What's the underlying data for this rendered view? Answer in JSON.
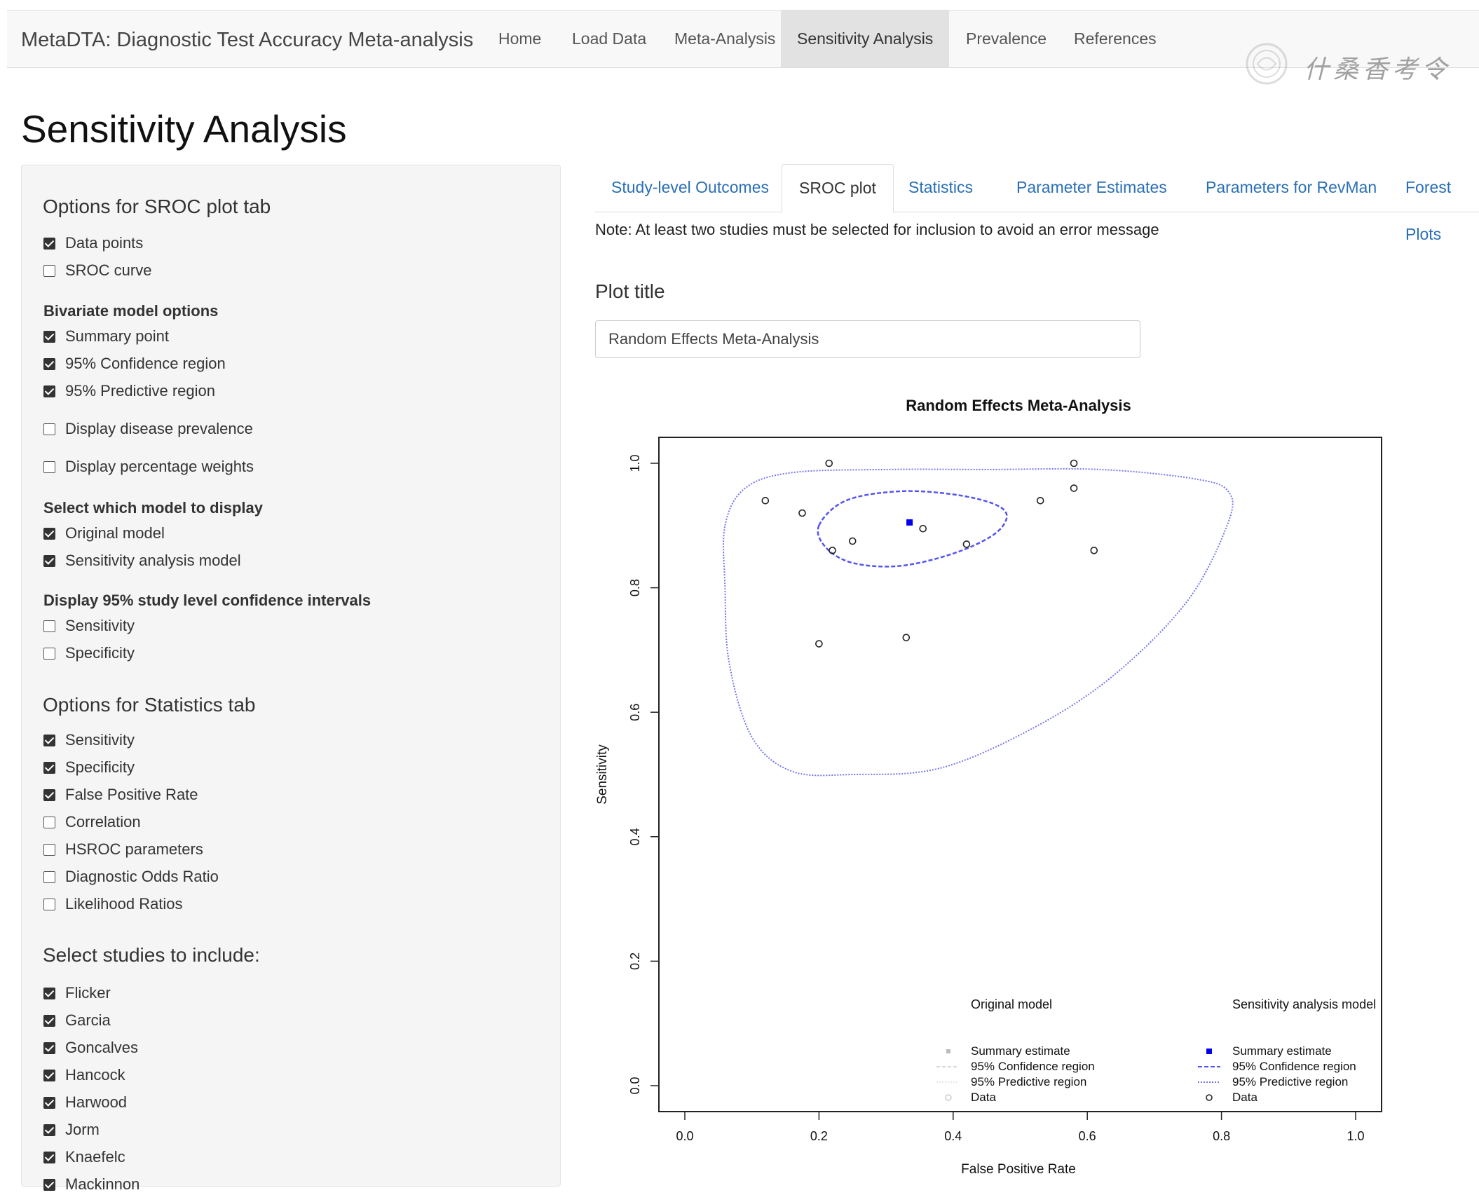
{
  "navbar": {
    "brand": "MetaDTA: Diagnostic Test Accuracy Meta-analysis",
    "items": [
      {
        "label": "Home",
        "active": false
      },
      {
        "label": "Load Data",
        "active": false
      },
      {
        "label": "Meta-Analysis",
        "active": false
      },
      {
        "label": "Sensitivity Analysis",
        "active": true
      },
      {
        "label": "Prevalence",
        "active": false
      },
      {
        "label": "References",
        "active": false
      }
    ]
  },
  "watermark_text": "什桑香考令",
  "page_title": "Sensitivity Analysis",
  "sidebar": {
    "sroc_heading": "Options for SROC plot tab",
    "sroc_options": [
      {
        "label": "Data points",
        "checked": true
      },
      {
        "label": "SROC curve",
        "checked": false
      }
    ],
    "bivariate_label": "Bivariate model options",
    "bivariate_options": [
      {
        "label": "Summary point",
        "checked": true
      },
      {
        "label": "95% Confidence region",
        "checked": true
      },
      {
        "label": "95% Predictive region",
        "checked": true
      }
    ],
    "display_options": [
      {
        "label": "Display disease prevalence",
        "checked": false
      },
      {
        "label": "Display percentage weights",
        "checked": false
      }
    ],
    "model_label": "Select which model to display",
    "model_options": [
      {
        "label": "Original model",
        "checked": true
      },
      {
        "label": "Sensitivity analysis model",
        "checked": true
      }
    ],
    "ci_label": "Display 95% study level confidence intervals",
    "ci_options": [
      {
        "label": "Sensitivity",
        "checked": false
      },
      {
        "label": "Specificity",
        "checked": false
      }
    ],
    "stats_heading": "Options for Statistics tab",
    "stats_options": [
      {
        "label": "Sensitivity",
        "checked": true
      },
      {
        "label": "Specificity",
        "checked": true
      },
      {
        "label": "False Positive Rate",
        "checked": true
      },
      {
        "label": "Correlation",
        "checked": false
      },
      {
        "label": "HSROC parameters",
        "checked": false
      },
      {
        "label": "Diagnostic Odds Ratio",
        "checked": false
      },
      {
        "label": "Likelihood Ratios",
        "checked": false
      }
    ],
    "studies_heading": "Select studies to include:",
    "studies": [
      {
        "label": "Flicker",
        "checked": true
      },
      {
        "label": "Garcia",
        "checked": true
      },
      {
        "label": "Goncalves",
        "checked": true
      },
      {
        "label": "Hancock",
        "checked": true
      },
      {
        "label": "Harwood",
        "checked": true
      },
      {
        "label": "Jorm",
        "checked": true
      },
      {
        "label": "Knaefelc",
        "checked": true
      },
      {
        "label": "Mackinnon",
        "checked": true
      }
    ]
  },
  "tabs": [
    {
      "label": "Study-level Outcomes",
      "active": false
    },
    {
      "label": "SROC plot",
      "active": true
    },
    {
      "label": "Statistics",
      "active": false
    },
    {
      "label": "Parameter Estimates",
      "active": false
    },
    {
      "label": "Parameters for RevMan",
      "active": false
    },
    {
      "label": "Forest Plots",
      "active": false
    }
  ],
  "note": "Note: At least two studies must be selected for inclusion to avoid an error message",
  "plot_title_label": "Plot title",
  "plot_title_value": "Random Effects Meta-Analysis",
  "colors": {
    "accent_blue": "#2a6fb5",
    "summary_blue": "#0000ee",
    "region_blue": "#6666ee"
  },
  "chart_data": {
    "type": "scatter",
    "title": "Random Effects Meta-Analysis",
    "xlabel": "False Positive Rate",
    "ylabel": "Sensitivity",
    "xlim": [
      0,
      1
    ],
    "ylim": [
      0,
      1
    ],
    "xticks": [
      "0.0",
      "0.2",
      "0.4",
      "0.6",
      "0.8",
      "1.0"
    ],
    "yticks": [
      "0.0",
      "0.2",
      "0.4",
      "0.6",
      "0.8",
      "1.0"
    ],
    "grid": false,
    "data_points": [
      {
        "x": 0.12,
        "y": 0.94
      },
      {
        "x": 0.175,
        "y": 0.92
      },
      {
        "x": 0.215,
        "y": 1.0
      },
      {
        "x": 0.22,
        "y": 0.86
      },
      {
        "x": 0.25,
        "y": 0.875
      },
      {
        "x": 0.2,
        "y": 0.71
      },
      {
        "x": 0.33,
        "y": 0.72
      },
      {
        "x": 0.355,
        "y": 0.895
      },
      {
        "x": 0.42,
        "y": 0.87
      },
      {
        "x": 0.53,
        "y": 0.94
      },
      {
        "x": 0.58,
        "y": 1.0
      },
      {
        "x": 0.58,
        "y": 0.96
      },
      {
        "x": 0.61,
        "y": 0.86
      }
    ],
    "summary_estimate": {
      "x": 0.335,
      "y": 0.905
    },
    "confidence_region": [
      [
        0.2,
        0.9
      ],
      [
        0.24,
        0.94
      ],
      [
        0.32,
        0.955
      ],
      [
        0.4,
        0.95
      ],
      [
        0.46,
        0.935
      ],
      [
        0.48,
        0.915
      ],
      [
        0.46,
        0.885
      ],
      [
        0.4,
        0.855
      ],
      [
        0.32,
        0.835
      ],
      [
        0.25,
        0.84
      ],
      [
        0.21,
        0.865
      ]
    ],
    "predictive_region": [
      [
        0.06,
        0.9
      ],
      [
        0.09,
        0.96
      ],
      [
        0.16,
        0.985
      ],
      [
        0.3,
        0.99
      ],
      [
        0.45,
        0.99
      ],
      [
        0.62,
        0.99
      ],
      [
        0.76,
        0.975
      ],
      [
        0.81,
        0.955
      ],
      [
        0.81,
        0.905
      ],
      [
        0.75,
        0.78
      ],
      [
        0.64,
        0.66
      ],
      [
        0.52,
        0.575
      ],
      [
        0.38,
        0.51
      ],
      [
        0.25,
        0.5
      ],
      [
        0.16,
        0.505
      ],
      [
        0.1,
        0.56
      ],
      [
        0.066,
        0.68
      ],
      [
        0.06,
        0.8
      ]
    ],
    "legend": {
      "placement": "bottom",
      "original": {
        "title": "Original model",
        "entries": [
          "Summary estimate",
          "95% Confidence region",
          "95% Predictive region",
          "Data"
        ]
      },
      "sensitivity": {
        "title": "Sensitivity analysis model",
        "entries": [
          "Summary estimate",
          "95% Confidence region",
          "95% Predictive region",
          "Data"
        ]
      }
    }
  }
}
